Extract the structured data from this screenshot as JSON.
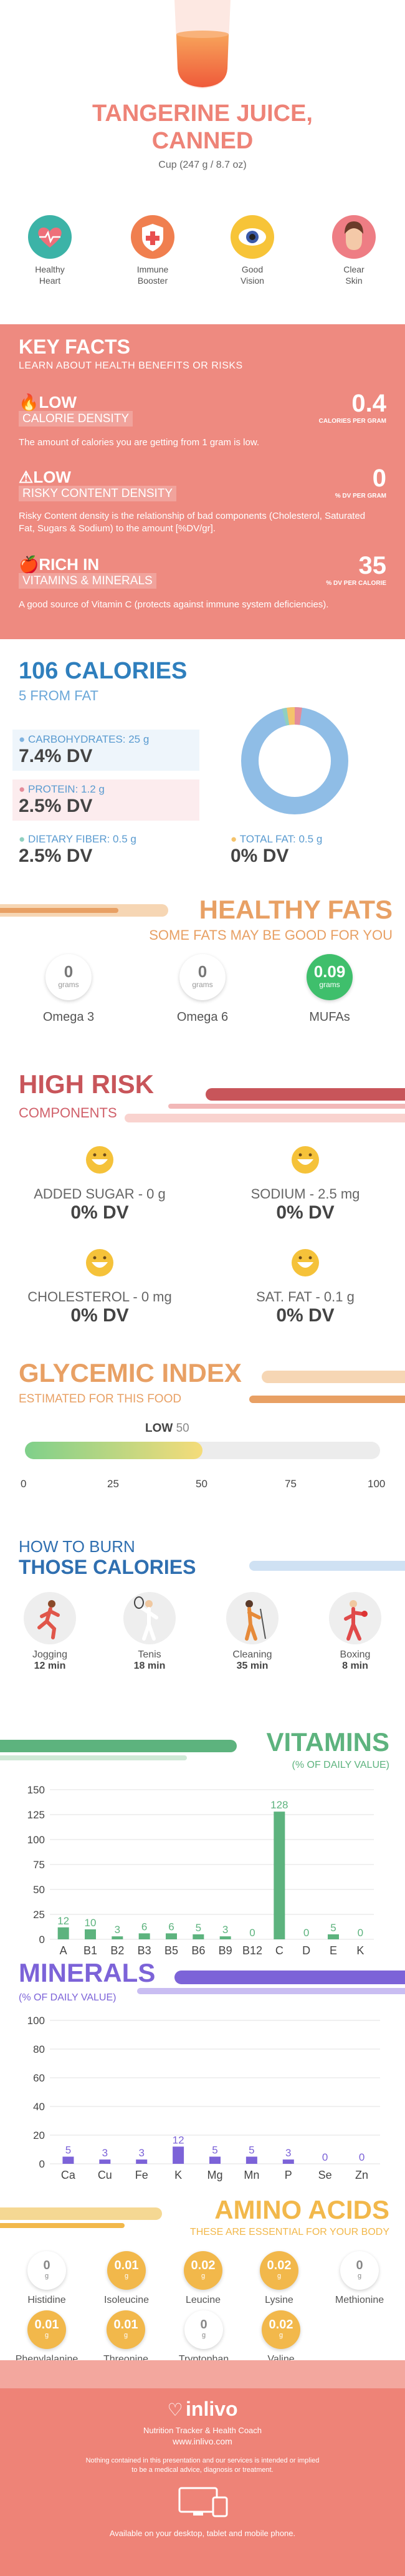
{
  "header": {
    "title_line1": "TANGERINE JUICE,",
    "title_line2": "CANNED",
    "serving": "Cup (247 g / 8.7 oz)"
  },
  "benefits": [
    {
      "label1": "Healthy",
      "label2": "Heart",
      "icon": "heart-icon",
      "color": "#3cb3a7"
    },
    {
      "label1": "Immune",
      "label2": "Booster",
      "icon": "shield-cross-icon",
      "color": "#f07f4f"
    },
    {
      "label1": "Good",
      "label2": "Vision",
      "icon": "eye-icon",
      "color": "#f7c438"
    },
    {
      "label1": "Clear",
      "label2": "Skin",
      "icon": "face-icon",
      "color": "#ee7d84"
    }
  ],
  "key_facts": {
    "title": "KEY FACTS",
    "subtitle": "LEARN ABOUT HEALTH BENEFITS OR RISKS",
    "items": [
      {
        "level": "LOW",
        "label": "CALORIE DENSITY",
        "value": "0.4",
        "unit": "CALORIES PER GRAM",
        "desc": "The amount of calories you are getting from 1 gram is low."
      },
      {
        "level": "LOW",
        "label": "RISKY CONTENT DENSITY",
        "value": "0",
        "unit": "% DV PER GRAM",
        "desc": "Risky Content density is the relationship of bad components (Cholesterol, Saturated Fat, Sugars & Sodium) to the amount [%DV/gr]."
      },
      {
        "level": "RICH  IN",
        "label": "VITAMINS & MINERALS",
        "value": "35",
        "unit": "% DV PER CALORIE",
        "desc": "A good source of Vitamin C (protects against immune system deficiencies)."
      }
    ]
  },
  "calories": {
    "title": "106 CALORIES",
    "subtitle": "5 FROM FAT",
    "nutrients": [
      {
        "label": "CARBOHYDRATES: 25 g",
        "value": "7.4% DV",
        "color": "#7fb3e0"
      },
      {
        "label": "PROTEIN: 1.2 g",
        "value": "2.5% DV",
        "color": "#e58c9a"
      },
      {
        "label": "DIETARY FIBER: 0.5 g",
        "value": "2.5% DV",
        "color": "#8fd0c0"
      },
      {
        "label": "TOTAL FAT: 0.5 g",
        "value": "0% DV",
        "color": "#f4c36b"
      }
    ]
  },
  "healthy_fats": {
    "title": "HEALTHY FATS",
    "subtitle": "SOME FATS MAY BE GOOD FOR YOU",
    "items": [
      {
        "value": "0",
        "unit": "grams",
        "name": "Omega 3"
      },
      {
        "value": "0",
        "unit": "grams",
        "name": "Omega 6"
      },
      {
        "value": "0.09",
        "unit": "grams",
        "name": "MUFAs"
      }
    ]
  },
  "high_risk": {
    "title": "HIGH RISK",
    "subtitle": "COMPONENTS",
    "items": [
      {
        "label": "ADDED SUGAR - 0 g",
        "value": "0% DV"
      },
      {
        "label": "SODIUM - 2.5 mg",
        "value": "0% DV"
      },
      {
        "label": "CHOLESTEROL - 0 mg",
        "value": "0% DV"
      },
      {
        "label": "SAT. FAT - 0.1 g",
        "value": "0% DV"
      }
    ]
  },
  "glycemic": {
    "title": "GLYCEMIC INDEX",
    "subtitle": "ESTIMATED FOR THIS FOOD",
    "level": "LOW",
    "value": 50,
    "value_label": "50",
    "ticks": [
      "0",
      "25",
      "50",
      "75",
      "100"
    ]
  },
  "burn": {
    "title1": "HOW TO BURN",
    "title2": "THOSE CALORIES",
    "items": [
      {
        "activity": "Jogging",
        "time": "12 min",
        "icon": "jogging-icon"
      },
      {
        "activity": "Tenis",
        "time": "18 min",
        "icon": "tennis-icon"
      },
      {
        "activity": "Cleaning",
        "time": "35 min",
        "icon": "cleaning-icon"
      },
      {
        "activity": "Boxing",
        "time": "8 min",
        "icon": "boxing-icon"
      }
    ]
  },
  "chart_data": [
    {
      "type": "bar",
      "title": "VITAMINS",
      "subtitle": "(% OF DAILY VALUE)",
      "categories": [
        "A",
        "B1",
        "B2",
        "B3",
        "B5",
        "B6",
        "B9",
        "B12",
        "C",
        "D",
        "E",
        "K"
      ],
      "values": [
        12,
        10,
        3,
        6,
        6,
        5,
        3,
        0,
        128,
        0,
        5,
        0
      ],
      "value_labels": [
        "12",
        "10",
        "3",
        "6",
        "6",
        "5",
        "3",
        "0",
        "128",
        "0",
        "5",
        "0"
      ],
      "yticks": [
        "0",
        "25",
        "50",
        "75",
        "100",
        "125",
        "150"
      ],
      "ylim": [
        0,
        150
      ],
      "color": "#5db37e"
    },
    {
      "type": "bar",
      "title": "MINERALS",
      "subtitle": "(% OF DAILY VALUE)",
      "categories": [
        "Ca",
        "Cu",
        "Fe",
        "K",
        "Mg",
        "Mn",
        "P",
        "Se",
        "Zn"
      ],
      "values": [
        5,
        3,
        3,
        12,
        5,
        5,
        3,
        0,
        0
      ],
      "value_labels": [
        "5",
        "3",
        "3",
        "12",
        "5",
        "5",
        "3",
        "0",
        "0"
      ],
      "yticks": [
        "0",
        "20",
        "40",
        "60",
        "80",
        "100"
      ],
      "ylim": [
        0,
        100
      ],
      "color": "#7c63d8"
    }
  ],
  "amino": {
    "title": "AMINO ACIDS",
    "subtitle": "THESE ARE ESSENTIAL FOR YOUR BODY",
    "row1": [
      {
        "value": "0",
        "unit": "g",
        "name": "Histidine",
        "on": false
      },
      {
        "value": "0.01",
        "unit": "g",
        "name": "Isoleucine",
        "on": true
      },
      {
        "value": "0.02",
        "unit": "g",
        "name": "Leucine",
        "on": true
      },
      {
        "value": "0.02",
        "unit": "g",
        "name": "Lysine",
        "on": true
      },
      {
        "value": "0",
        "unit": "g",
        "name": "Methionine",
        "on": false
      }
    ],
    "row2": [
      {
        "value": "0.01",
        "unit": "g",
        "name": "Phenylalanine",
        "on": true
      },
      {
        "value": "0.01",
        "unit": "g",
        "name": "Threonine",
        "on": true
      },
      {
        "value": "0",
        "unit": "g",
        "name": "Tryptophan",
        "on": false
      },
      {
        "value": "0.02",
        "unit": "g",
        "name": "Valine",
        "on": true
      }
    ]
  },
  "footer": {
    "brand": "inlivo",
    "tagline": "Nutrition Tracker & Health Coach",
    "url": "www.inlivo.com",
    "disclaimer1": "Nothing contained in this presentation and our services is intended or implied",
    "disclaimer2": "to be a medical advice, diagnosis or treatment.",
    "available": "Available on your desktop, tablet and mobile phone."
  },
  "colors": {
    "coral": "#ee8377",
    "blue": "#2f7fbd",
    "orange": "#e8a064",
    "red": "#c8555a",
    "green": "#5db37e",
    "purple": "#7c63d8",
    "gold": "#f2b84b"
  }
}
